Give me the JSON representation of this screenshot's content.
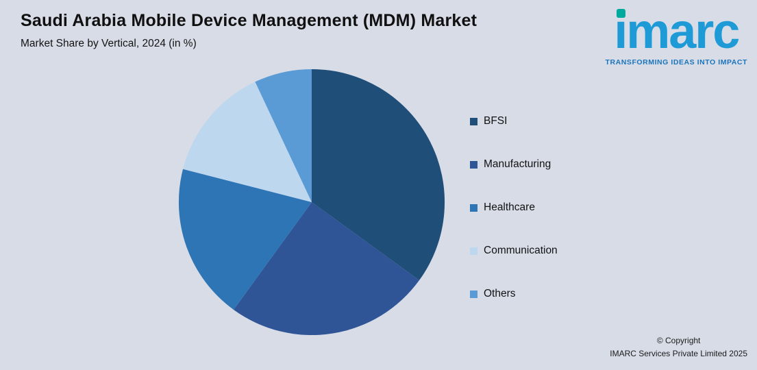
{
  "background_color": "#D7DCE7",
  "header": {
    "title": "Saudi Arabia Mobile Device Management (MDM) Market",
    "subtitle": "Market Share by Vertical, 2024 (in %)"
  },
  "logo": {
    "wordmark": "imarc",
    "tagline": "TRANSFORMING IDEAS INTO IMPACT",
    "brand_blue": "#1E9BD7",
    "dot_teal": "#00A99D",
    "tagline_blue": "#1B75BC"
  },
  "chart_data": {
    "type": "pie",
    "title": "Saudi Arabia Mobile Device Management (MDM) Market",
    "subtitle": "Market Share by Vertical, 2024 (in %)",
    "unit": "%",
    "labels": [
      "BFSI",
      "Manufacturing",
      "Healthcare",
      "Communication",
      "Others"
    ],
    "values": [
      35,
      25,
      19,
      14,
      7
    ],
    "colors": [
      "#1F4E79",
      "#2F5597",
      "#2E75B6",
      "#BDD7EE",
      "#5B9BD5"
    ],
    "start_angle_deg": 0,
    "direction": "clockwise",
    "legend_position": "right",
    "data_labels_shown": false,
    "note": "No numeric labels are rendered in the image; values estimated from slice angles."
  },
  "footer": {
    "copyright_line1": "© Copyright",
    "copyright_line2": "IMARC Services Private Limited 2025"
  }
}
